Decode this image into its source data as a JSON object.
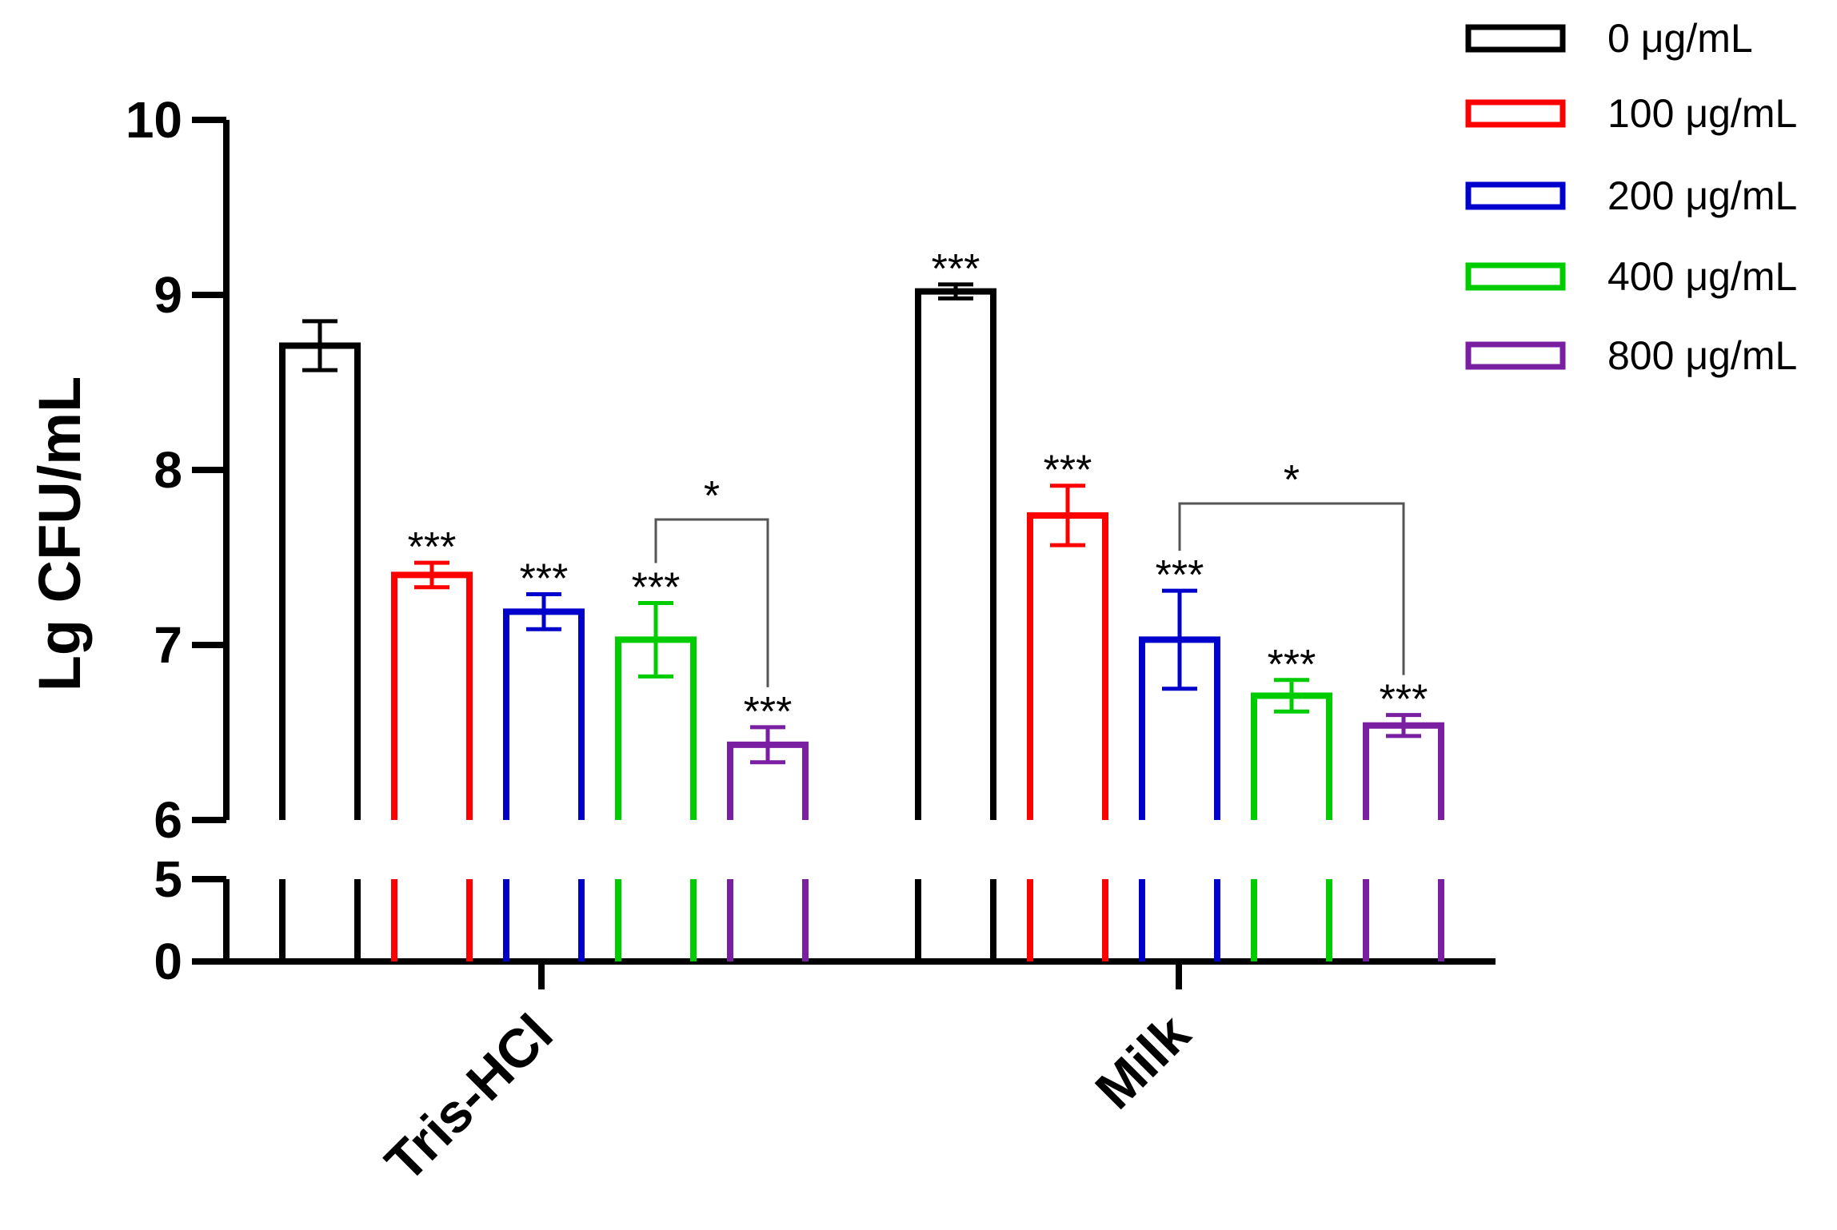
{
  "chart_data": {
    "type": "bar",
    "ylabel": "Lg CFU/mL",
    "xlabel": "",
    "categories": [
      "Tris-HCl",
      "Milk"
    ],
    "y_axis": {
      "broken": true,
      "lower_segment": {
        "range": [
          0,
          5
        ],
        "ticks": [
          0,
          5
        ]
      },
      "upper_segment": {
        "range": [
          6,
          10
        ],
        "ticks": [
          6,
          7,
          8,
          9,
          10
        ]
      }
    },
    "legend_position": "top-right",
    "series": [
      {
        "name": "0 μg/mL",
        "color": "#000000",
        "values": [
          8.71,
          9.02
        ],
        "errors": [
          0.14,
          0.04
        ]
      },
      {
        "name": "100 μg/mL",
        "color": "#ff0000",
        "values": [
          7.4,
          7.74
        ],
        "errors": [
          0.07,
          0.17
        ]
      },
      {
        "name": "200 μg/mL",
        "color": "#0000cc",
        "values": [
          7.19,
          7.03
        ],
        "errors": [
          0.1,
          0.28
        ]
      },
      {
        "name": "400 μg/mL",
        "color": "#00cc00",
        "values": [
          7.03,
          6.71
        ],
        "errors": [
          0.21,
          0.09
        ]
      },
      {
        "name": "800 μg/mL",
        "color": "#7a1fa2",
        "values": [
          6.43,
          6.54
        ],
        "errors": [
          0.1,
          0.06
        ]
      }
    ],
    "significance": [
      [
        "",
        "***"
      ],
      [
        "***",
        "***"
      ],
      [
        "***",
        "***"
      ],
      [
        "***",
        "***"
      ],
      [
        "***",
        "***"
      ]
    ],
    "comparisons": [
      {
        "category": 0,
        "from_series": 3,
        "to_series": 4,
        "label": "*"
      },
      {
        "category": 1,
        "from_series": 2,
        "to_series": 4,
        "label": "*"
      }
    ]
  }
}
